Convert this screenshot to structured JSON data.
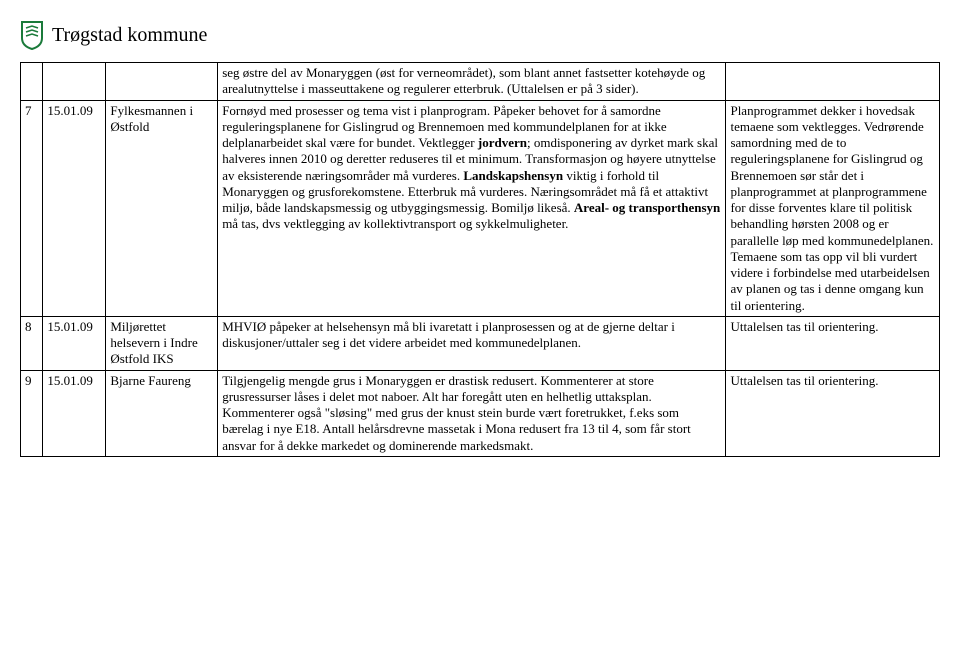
{
  "header": {
    "title": "Trøgstad kommune",
    "shield_colors": {
      "outline": "#1a7a3a",
      "fill": "#ffffff",
      "accent": "#1a7a3a"
    }
  },
  "table": {
    "rows": [
      {
        "num": "",
        "date": "",
        "author": "",
        "body": "seg østre del av Monaryggen (øst for verneområdet), som blant annet fastsetter kotehøyde og arealutnyttelse i masseuttakene og regulerer etterbruk. (Uttalelsen er på 3 sider).",
        "remark": ""
      },
      {
        "num": "7",
        "date": "15.01.09",
        "author": "Fylkesmannen i Østfold",
        "body_html": "Fornøyd med prosesser og tema vist i planprogram. Påpeker behovet for å samordne reguleringsplanene for Gislingrud og Brennemoen med kommundelplanen for at ikke delplanarbeidet skal være for bundet. Vektlegger <b>jordvern</b>; omdisponering av dyrket mark skal halveres innen 2010 og deretter reduseres til et minimum. Transformasjon og høyere utnyttelse av eksisterende næringsområder må vurderes. <b>Landskapshensyn</b> viktig i forhold til Monaryggen og grusforekomstene. Etterbruk må vurderes. Næringsområdet må få et attaktivt miljø, både landskapsmessig og utbyggingsmessig. Bomiljø likeså. <b>Areal- og transporthensyn</b> må tas, dvs vektlegging av kollektivtransport og sykkelmuligheter.",
        "remark": "Planprogrammet dekker i hovedsak temaene som vektlegges. Vedrørende samordning med de to reguleringsplanene for Gislingrud og Brennemoen sør står det i planprogrammet at planprogrammene for disse forventes klare til politisk behandling hørsten 2008 og er parallelle løp med kommunedelplanen. Temaene som tas opp vil bli vurdert videre i forbindelse med utarbeidelsen av planen og tas i denne omgang kun til orientering."
      },
      {
        "num": "8",
        "date": "15.01.09",
        "author": "Miljørettet helsevern i Indre Østfold IKS",
        "body": "MHVIØ påpeker at helsehensyn må bli ivaretatt i planprosessen og at de gjerne deltar i diskusjoner/uttaler seg i det videre arbeidet med kommunedelplanen.",
        "remark": "Uttalelsen tas til orientering."
      },
      {
        "num": "9",
        "date": "15.01.09",
        "author": "Bjarne Faureng",
        "body": "Tilgjengelig mengde grus i Monaryggen er drastisk redusert. Kommenterer at store grusressurser låses i delet mot naboer. Alt har foregått uten en helhetlig uttaksplan. Kommenterer også \"sløsing\" med grus der knust stein burde vært foretrukket, f.eks som bærelag i nye E18. Antall helårsdrevne massetak i Mona redusert fra 13 til 4, som får stort ansvar for å dekke markedet og dominerende markedsmakt.",
        "remark": "Uttalelsen tas til orientering."
      }
    ]
  }
}
